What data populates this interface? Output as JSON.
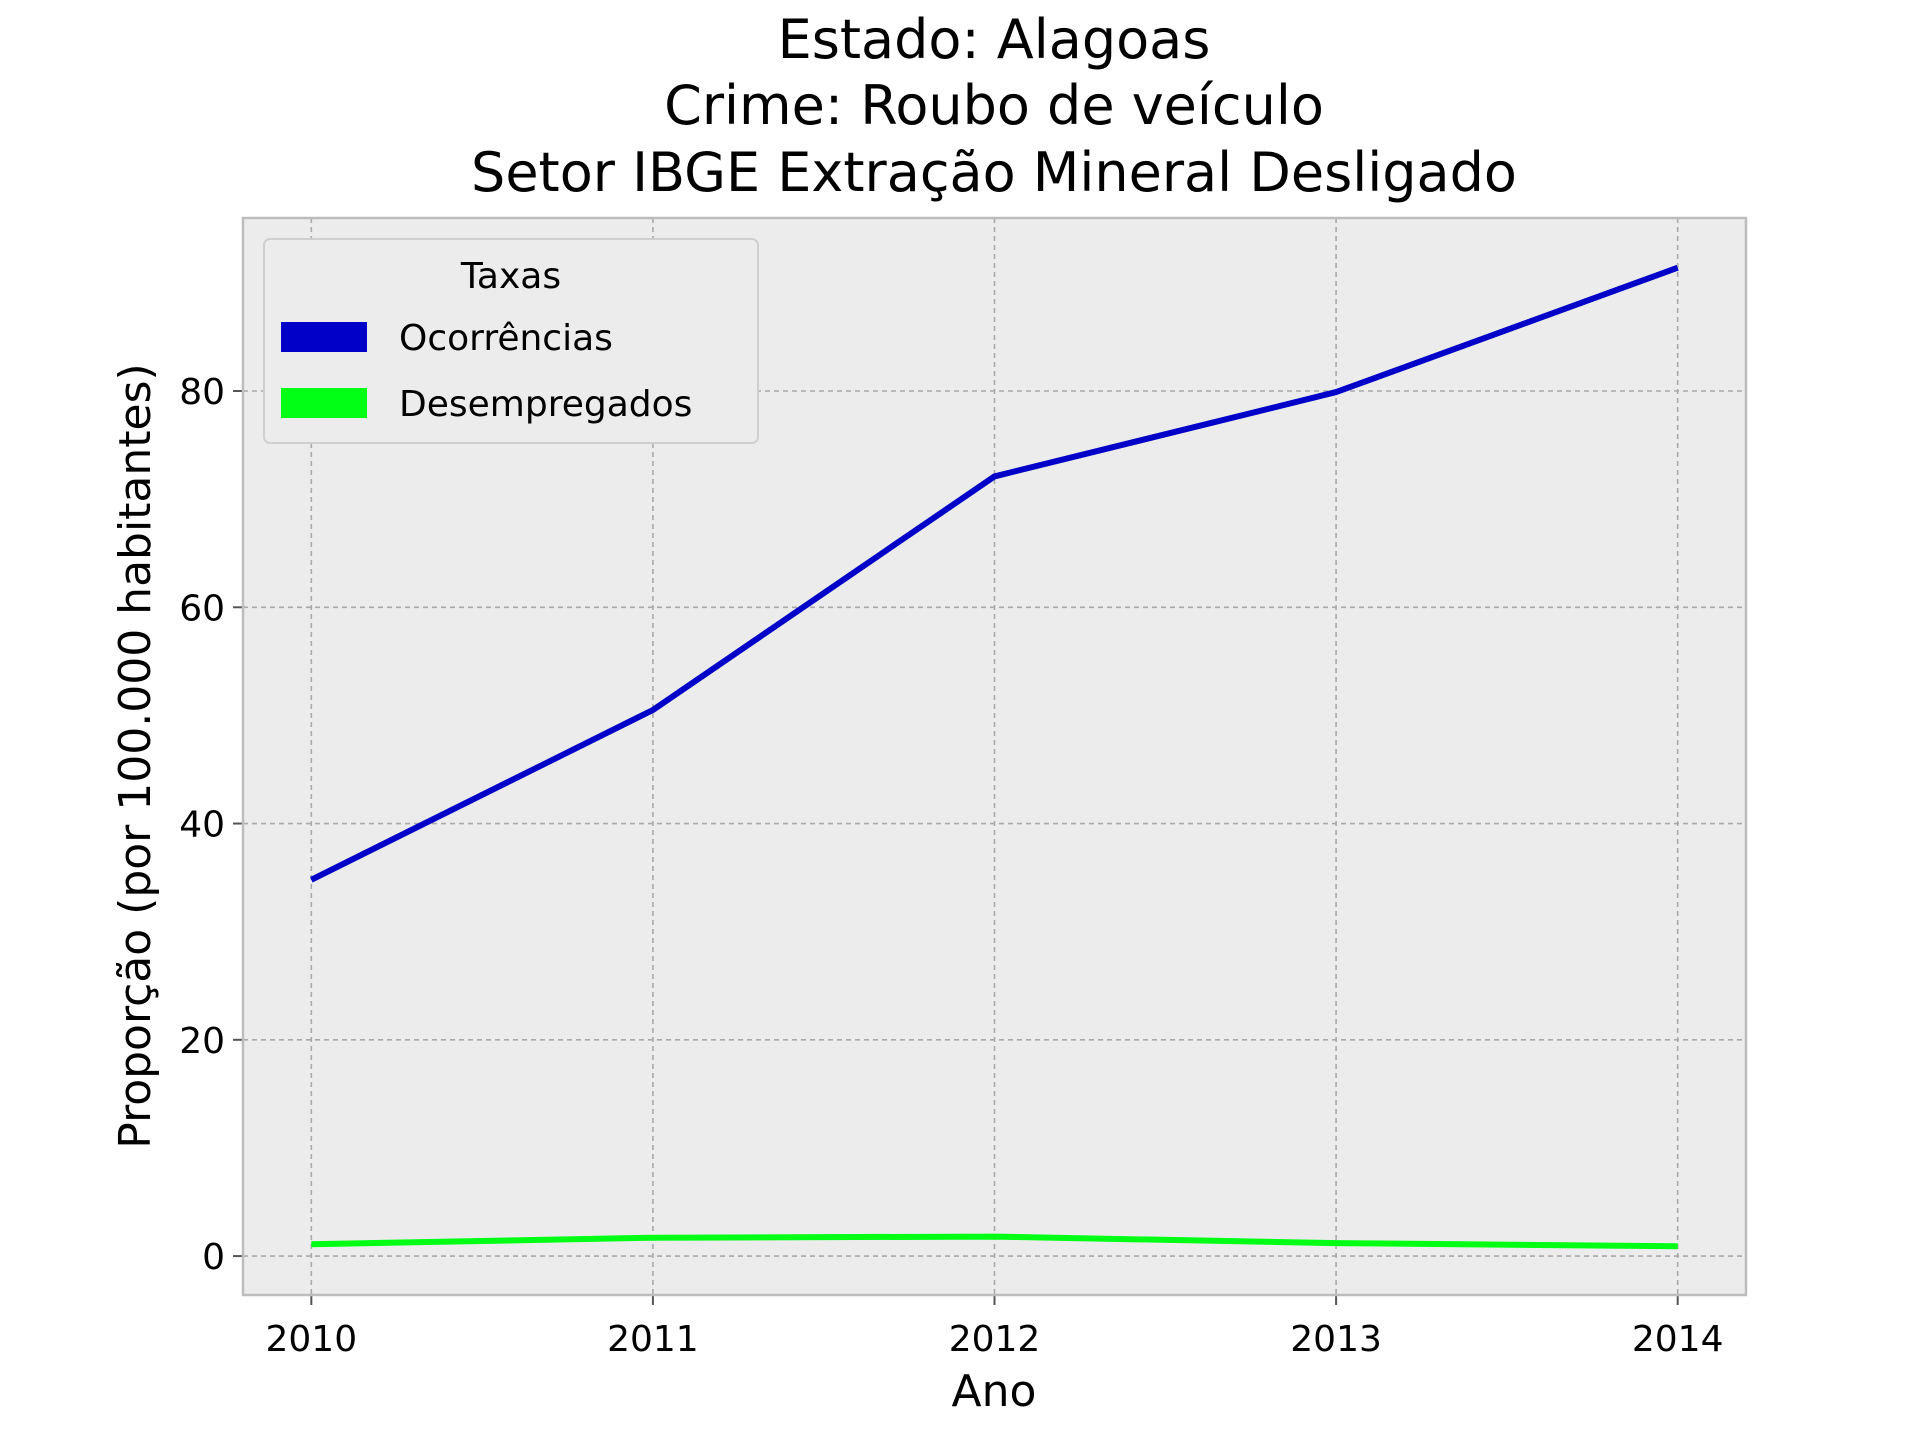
{
  "chart_data": {
    "type": "line",
    "title_lines": [
      "Estado: Alagoas",
      "Crime: Roubo de veículo",
      "Setor IBGE  Extração Mineral   Desligado"
    ],
    "xlabel": "Ano",
    "ylabel": "Proporção (por 100.000 habitantes)",
    "x": [
      2010,
      2011,
      2012,
      2013,
      2014
    ],
    "x_tick_labels": [
      "2010",
      "2011",
      "2012",
      "2013",
      "2014"
    ],
    "xlim": [
      2009.8,
      2014.2
    ],
    "ylim": [
      -3.6,
      96
    ],
    "y_ticks": [
      0,
      20,
      40,
      60,
      80
    ],
    "y_tick_labels": [
      "0",
      "20",
      "40",
      "60",
      "80"
    ],
    "grid": true,
    "legend": {
      "title": "Taxas",
      "placement": "top-left"
    },
    "series": [
      {
        "name": "Ocorrências",
        "color": "#0000c8",
        "values": [
          34.8,
          50.5,
          72.1,
          79.9,
          91.4
        ]
      },
      {
        "name": "Desempregados",
        "color": "#00ff14",
        "values": [
          1.1,
          1.7,
          1.8,
          1.2,
          0.9
        ]
      }
    ],
    "colors": {
      "plot_background": "#ececec",
      "grid": "#a9a9a9",
      "axes_edge": "#bdbdbd"
    }
  }
}
